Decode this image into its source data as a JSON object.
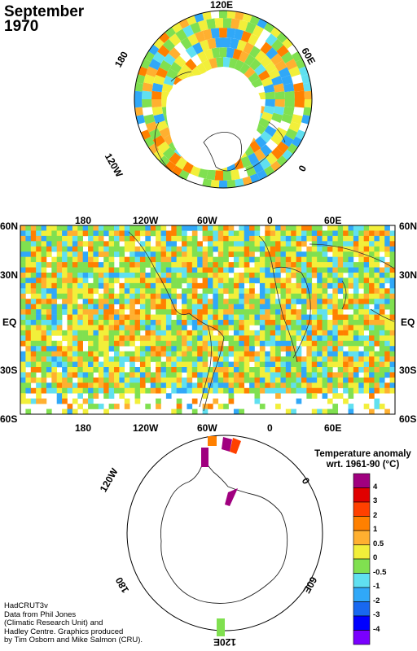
{
  "title": {
    "month": "September",
    "year": "1970"
  },
  "north_polar_labels": {
    "top": "120E",
    "right": "60E",
    "bottom_right": "0",
    "left_top": "180",
    "left_bottom": "120W"
  },
  "world_map": {
    "top_lon_labels": [
      "180",
      "120W",
      "60W",
      "0",
      "60E"
    ],
    "bottom_lon_labels": [
      "180",
      "120W",
      "60W",
      "0",
      "60E"
    ],
    "lat_labels_left": [
      "60N",
      "30N",
      "EQ",
      "30S",
      "60S"
    ],
    "lat_labels_right": [
      "60N",
      "30N",
      "EQ",
      "30S",
      "60S"
    ]
  },
  "south_polar_labels": {
    "upper_left": "120W",
    "upper_right": "0",
    "lower_left": "180",
    "lower_right": "60E",
    "bottom": "120E"
  },
  "legend": {
    "title_line1": "Temperature anomaly",
    "title_line2": "wrt. 1961-90  (°C)",
    "labels": [
      "4",
      "3",
      "2",
      "1",
      "0.5",
      "0",
      "-0.5",
      "-1",
      "-2",
      "-3",
      "-4"
    ],
    "colors": [
      "#a0007f",
      "#e00000",
      "#ff4000",
      "#ff8000",
      "#ffb030",
      "#f2ef3a",
      "#80e050",
      "#60e0f0",
      "#30a8f8",
      "#1868f0",
      "#0000ff",
      "#7a00ff"
    ]
  },
  "credits": [
    "HadCRUT3v",
    "Data from Phil Jones",
    "(Climatic Research Unit) and",
    "Hadley Centre.  Graphics produced",
    "by Tim Osborn and Mike Salmon (CRU)."
  ]
}
